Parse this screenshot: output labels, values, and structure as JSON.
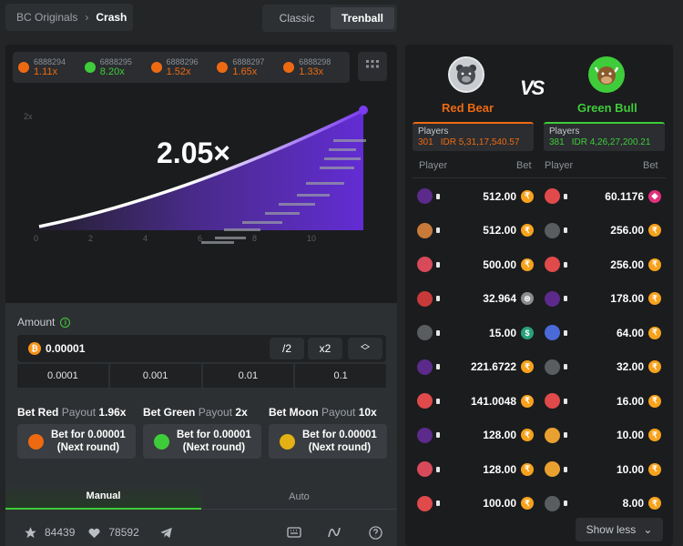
{
  "breadcrumb": {
    "parent": "BC Originals",
    "current": "Crash"
  },
  "mode_tabs": {
    "classic": "Classic",
    "trenball": "Trenball"
  },
  "history": [
    {
      "id": "6888294",
      "mult": "1.11x",
      "color": "#ee6a12"
    },
    {
      "id": "6888295",
      "mult": "8.20x",
      "color": "#3fcc3a"
    },
    {
      "id": "6888296",
      "mult": "1.52x",
      "color": "#ee6a12"
    },
    {
      "id": "6888297",
      "mult": "1.65x",
      "color": "#ee6a12"
    },
    {
      "id": "6888298",
      "mult": "1.33x",
      "color": "#ee6a12"
    }
  ],
  "game": {
    "multiplier": "2.05×",
    "y_tick": "2x",
    "x_ticks": [
      "0",
      "2",
      "4",
      "6",
      "8",
      "10"
    ]
  },
  "bet": {
    "amount_label": "Amount",
    "amount_value": "0.00001",
    "coin_symbol": "₿",
    "half": "/2",
    "double": "x2",
    "quick": [
      "0.0001",
      "0.001",
      "0.01",
      "0.1"
    ],
    "options": [
      {
        "title": "Bet Red",
        "payout_label": "Payout",
        "payout": "1.96x",
        "btn_line1": "Bet for 0.00001",
        "btn_line2": "(Next round)",
        "color": "#ee6a12"
      },
      {
        "title": "Bet Green",
        "payout_label": "Payout",
        "payout": "2x",
        "btn_line1": "Bet for 0.00001",
        "btn_line2": "(Next round)",
        "color": "#3fcc3a"
      },
      {
        "title": "Bet Moon",
        "payout_label": "Payout",
        "payout": "10x",
        "btn_line1": "Bet for 0.00001",
        "btn_line2": "(Next round)",
        "color": "#e3b114"
      }
    ],
    "tab_manual": "Manual",
    "tab_auto": "Auto"
  },
  "footer": {
    "stars": "84439",
    "likes": "78592"
  },
  "teams": {
    "vs": "VS",
    "red": {
      "name": "Red Bear",
      "players_label": "Players",
      "players": "301",
      "total": "IDR 5,31,17,540.57",
      "color": "#ee6a12"
    },
    "green": {
      "name": "Green Bull",
      "players_label": "Players",
      "players": "381",
      "total": "IDR 4,26,27,200.21",
      "color": "#3fcc3a"
    },
    "col_player": "Player",
    "col_bet": "Bet"
  },
  "red_bets": [
    {
      "bet": "512.00",
      "cur": "₹",
      "ctype": "r",
      "avatar": "#5b2a8a"
    },
    {
      "bet": "512.00",
      "cur": "₹",
      "ctype": "r",
      "avatar": "#c77a3a"
    },
    {
      "bet": "500.00",
      "cur": "₹",
      "ctype": "r",
      "avatar": "#d84a5a"
    },
    {
      "bet": "32.964",
      "cur": "⊜",
      "ctype": "g",
      "avatar": "#c73a3a"
    },
    {
      "bet": "15.00",
      "cur": "$",
      "ctype": "u",
      "avatar": "#5a5d60"
    },
    {
      "bet": "221.6722",
      "cur": "₹",
      "ctype": "r",
      "avatar": "#5b2a8a"
    },
    {
      "bet": "141.0048",
      "cur": "₹",
      "ctype": "r",
      "avatar": "#e04a4a"
    },
    {
      "bet": "128.00",
      "cur": "₹",
      "ctype": "r",
      "avatar": "#5b2a8a"
    },
    {
      "bet": "128.00",
      "cur": "₹",
      "ctype": "r",
      "avatar": "#d84a5a"
    },
    {
      "bet": "100.00",
      "cur": "₹",
      "ctype": "r",
      "avatar": "#e04a4a"
    }
  ],
  "green_bets": [
    {
      "bet": "60.1176",
      "cur": "◆",
      "ctype": "t",
      "avatar": "#e04a4a"
    },
    {
      "bet": "256.00",
      "cur": "₹",
      "ctype": "r",
      "avatar": "#5a5d60"
    },
    {
      "bet": "256.00",
      "cur": "₹",
      "ctype": "r",
      "avatar": "#e04a4a"
    },
    {
      "bet": "178.00",
      "cur": "₹",
      "ctype": "r",
      "avatar": "#5b2a8a"
    },
    {
      "bet": "64.00",
      "cur": "₹",
      "ctype": "r",
      "avatar": "#4a6ad8"
    },
    {
      "bet": "32.00",
      "cur": "₹",
      "ctype": "r",
      "avatar": "#5a5d60"
    },
    {
      "bet": "16.00",
      "cur": "₹",
      "ctype": "r",
      "avatar": "#e04a4a"
    },
    {
      "bet": "10.00",
      "cur": "₹",
      "ctype": "r",
      "avatar": "#e8a030"
    },
    {
      "bet": "10.00",
      "cur": "₹",
      "ctype": "r",
      "avatar": "#e8a030"
    },
    {
      "bet": "8.00",
      "cur": "₹",
      "ctype": "r",
      "avatar": "#5a5d60"
    }
  ],
  "show_less": "Show less"
}
